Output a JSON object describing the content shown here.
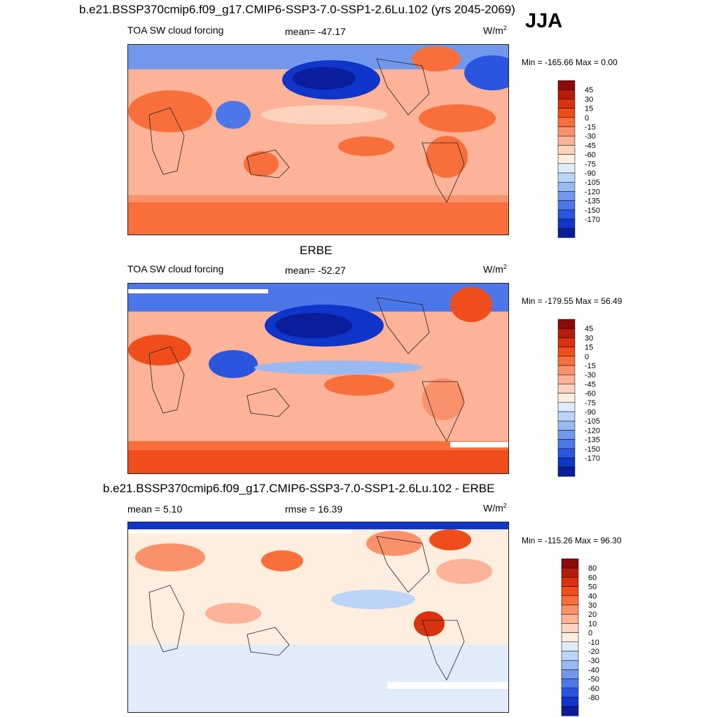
{
  "header": {
    "title": "b.e21.BSSP370cmip6.f09_g17.CMIP6-SSP3-7.0-SSP1-2.6Lu.102 (yrs 2045-2069)",
    "season": "JJA"
  },
  "colors": {
    "warm_scale": [
      "#8b0a0a",
      "#b51c0c",
      "#d8320e",
      "#ef4e1c",
      "#f86f3c",
      "#fb916a",
      "#fcb397",
      "#fdd3bd",
      "#fdeedf",
      "#e1ecfb",
      "#bcd4f8",
      "#98b9f2",
      "#7198ec",
      "#4d77e8",
      "#2a55de",
      "#0f35c9",
      "#0a1d9a"
    ],
    "diff_scale": [
      "#8b0a0a",
      "#b51c0c",
      "#d8320e",
      "#ef4e1c",
      "#f86f3c",
      "#fb916a",
      "#fcb397",
      "#fdd3bd",
      "#fdeedf",
      "#e1ecfb",
      "#bcd4f8",
      "#98b9f2",
      "#7198ec",
      "#4d77e8",
      "#2a55de",
      "#0f35c9",
      "#0a1d9a"
    ]
  },
  "chart_data": [
    {
      "type": "heatmap",
      "title": "b.e21.BSSP370cmip6.f09_g17.CMIP6-SSP3-7.0-SSP1-2.6Lu.102 (yrs 2045-2069)",
      "variable": "TOA SW cloud forcing",
      "mean_label": "mean= -47.17",
      "units": "W/m",
      "units_sup": "2",
      "minmax": "Min = -165.66 Max =   0.00",
      "colorbar_levels": [
        "45",
        "30",
        "15",
        "0",
        "-15",
        "-30",
        "-45",
        "-60",
        "-75",
        "-90",
        "-105",
        "-120",
        "-135",
        "-150",
        "-170"
      ]
    },
    {
      "type": "heatmap",
      "title": "ERBE",
      "variable": "TOA SW cloud forcing",
      "mean_label": "mean= -52.27",
      "units": "W/m",
      "units_sup": "2",
      "minmax": "Min = -179.55 Max =  56.49",
      "colorbar_levels": [
        "45",
        "30",
        "15",
        "0",
        "-15",
        "-30",
        "-45",
        "-60",
        "-75",
        "-90",
        "-105",
        "-120",
        "-135",
        "-150",
        "-170"
      ]
    },
    {
      "type": "heatmap",
      "title": "b.e21.BSSP370cmip6.f09_g17.CMIP6-SSP3-7.0-SSP1-2.6Lu.102 - ERBE",
      "mean_label": "mean =   5.10",
      "rmse_label": "rmse =  16.39",
      "units": "W/m",
      "units_sup": "2",
      "minmax": "Min = -115.26 Max =  96.30",
      "colorbar_levels": [
        "80",
        "60",
        "50",
        "40",
        "30",
        "20",
        "10",
        "0",
        "-10",
        "-20",
        "-30",
        "-40",
        "-50",
        "-60",
        "-80"
      ]
    }
  ]
}
